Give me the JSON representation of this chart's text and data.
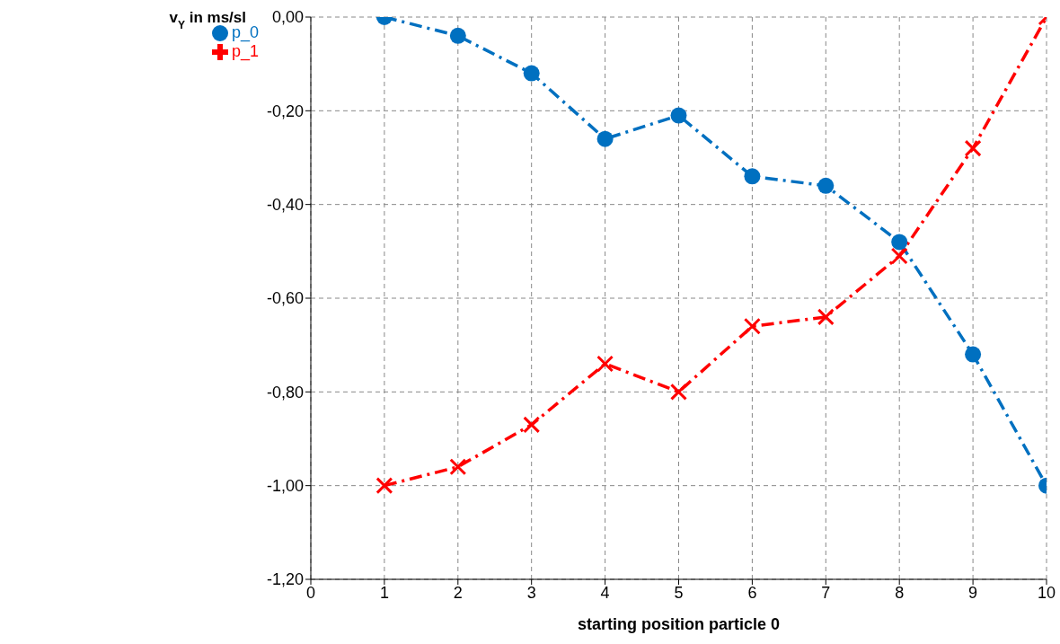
{
  "chart_data": {
    "type": "line",
    "xlabel": "starting position particle 0",
    "ylabel": "v$_{Y}$ in ms/sl",
    "x": [
      1,
      2,
      3,
      4,
      5,
      6,
      7,
      8,
      9,
      10
    ],
    "series": [
      {
        "name": "p_0",
        "color": "#0070c0",
        "marker": "circle",
        "line_style": "dashed",
        "values": [
          0,
          -0.04,
          -0.12,
          -0.26,
          -0.21,
          -0.34,
          -0.36,
          -0.48,
          -0.72,
          -1.0
        ]
      },
      {
        "name": "p_1",
        "color": "#ff0000",
        "marker": "cross",
        "line_style": "dashed",
        "values": [
          -1.0,
          -0.96,
          -0.87,
          -0.74,
          -0.8,
          -0.66,
          -0.64,
          -0.51,
          -0.28,
          0
        ]
      }
    ],
    "xlim": [
      0,
      10
    ],
    "xticks": [
      0,
      1,
      2,
      3,
      4,
      5,
      6,
      7,
      8,
      9,
      10
    ],
    "ylim": [
      -1.2,
      0
    ],
    "yticks": [
      {
        "value": -1.2,
        "label": "-1,20"
      },
      {
        "value": -1.0,
        "label": "-1,00"
      },
      {
        "value": -0.8,
        "label": "-0,80"
      },
      {
        "value": -0.6,
        "label": "-0,60"
      },
      {
        "value": -0.4,
        "label": "-0,40"
      },
      {
        "value": -0.2,
        "label": "-0,20"
      },
      {
        "value": 0,
        "label": "0,00"
      }
    ],
    "grid": true,
    "legend": "top left"
  }
}
